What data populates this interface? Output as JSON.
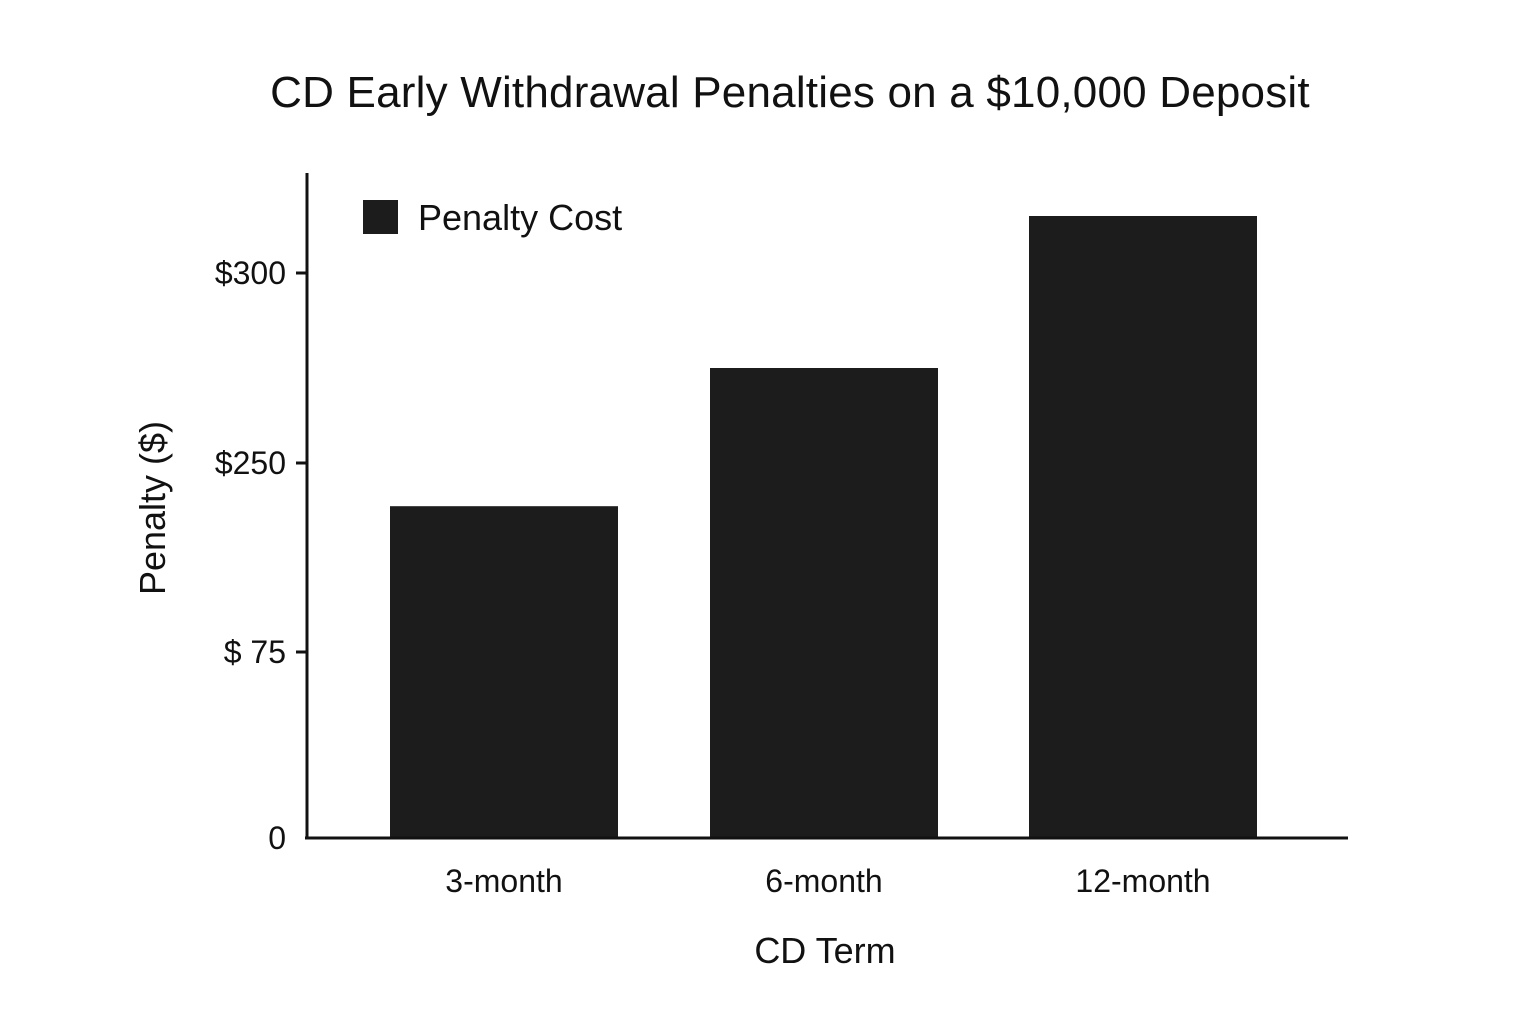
{
  "chart_data": {
    "type": "bar",
    "title": "CD Early Withdrawal Penalties on a $10,000 Deposit",
    "xlabel": "CD Term",
    "ylabel": "Penalty ($)",
    "categories": [
      "3-month",
      "6-month",
      "12-month"
    ],
    "series": [
      {
        "name": "Penalty Cost",
        "values": [
          210,
          275,
          315
        ],
        "color": "#1c1c1c"
      }
    ],
    "y_ticks": [
      {
        "label": "0",
        "value": 0
      },
      {
        "label": "$ 75",
        "value": 75
      },
      {
        "label": "$250",
        "value": 250
      },
      {
        "label": "$300",
        "value": 300
      }
    ],
    "ylim": [
      0,
      330
    ],
    "grid": false,
    "legend_position": "top-left",
    "note": "y-axis tick labels are unevenly spaced as printed; bar values estimated from visual position"
  }
}
